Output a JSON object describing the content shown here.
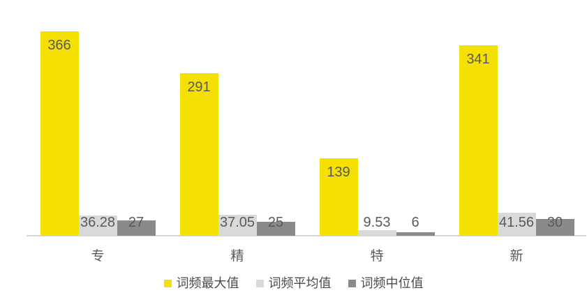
{
  "colors": {
    "background": "#ffffff",
    "axis_line": "#d7d7d7",
    "data_label_text": "#595959",
    "category_label_text": "#595959",
    "legend_text": "#4a4a4a"
  },
  "chart_data": {
    "type": "bar",
    "categories": [
      "专",
      "精",
      "特",
      "新"
    ],
    "series": [
      {
        "name": "词频最大值",
        "color": "#f5e003",
        "values": [
          366,
          291,
          139,
          341
        ]
      },
      {
        "name": "词频平均值",
        "color": "#d9d9d9",
        "values": [
          36.28,
          37.05,
          9.53,
          41.56
        ]
      },
      {
        "name": "词频中位值",
        "color": "#8a8a8a",
        "values": [
          27,
          25,
          6,
          30
        ]
      }
    ],
    "title": "",
    "xlabel": "",
    "ylabel": "",
    "ylim": [
      0,
      420
    ],
    "grid": false,
    "y_axis_visible": false,
    "legend_position": "bottom",
    "data_labels": "shown"
  }
}
